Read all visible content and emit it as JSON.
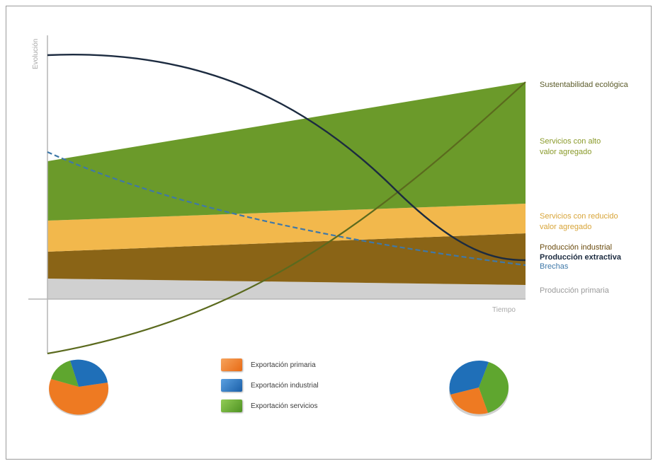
{
  "axes": {
    "y_label": "Evolución",
    "x_label": "Tiempo"
  },
  "labels": {
    "sustentabilidad": "Sustentabilidad ecológica",
    "servicios_alto": "Servicios con alto\nvalor agregado",
    "servicios_reducido": "Servicios con reducido\nvalor agregado",
    "produccion_industrial": "Producción industrial",
    "produccion_extractiva": "Producción extractiva",
    "brechas": "Brechas",
    "produccion_primaria": "Producción primaria"
  },
  "legend": [
    {
      "label": "Exportación primaria",
      "color": "#ee7a22"
    },
    {
      "label": "Exportación industrial",
      "color": "#1f6fb8"
    },
    {
      "label": "Exportación servicios",
      "color": "#5fa62f"
    }
  ],
  "pies": {
    "left": {
      "primaria": 0.65,
      "industrial": 0.25,
      "servicios": 0.1
    },
    "right": {
      "primaria": 0.25,
      "industrial": 0.35,
      "servicios": 0.4
    }
  },
  "colors": {
    "green_band": "#6b9a2a",
    "orange_band": "#f2b84c",
    "brown_band": "#8a6416",
    "gray_band": "#cfcfcf",
    "dark_curve": "#1c2b40",
    "olive_curve": "#5b6a1e",
    "blue_dashed": "#3f78a8",
    "label_green": "#8a9a2a",
    "label_orange": "#d8a53a",
    "label_brown": "#6b4c0f",
    "label_blue": "#3f78a8",
    "label_gray": "#9a9a9a",
    "label_dark": "#1c2b40"
  }
}
